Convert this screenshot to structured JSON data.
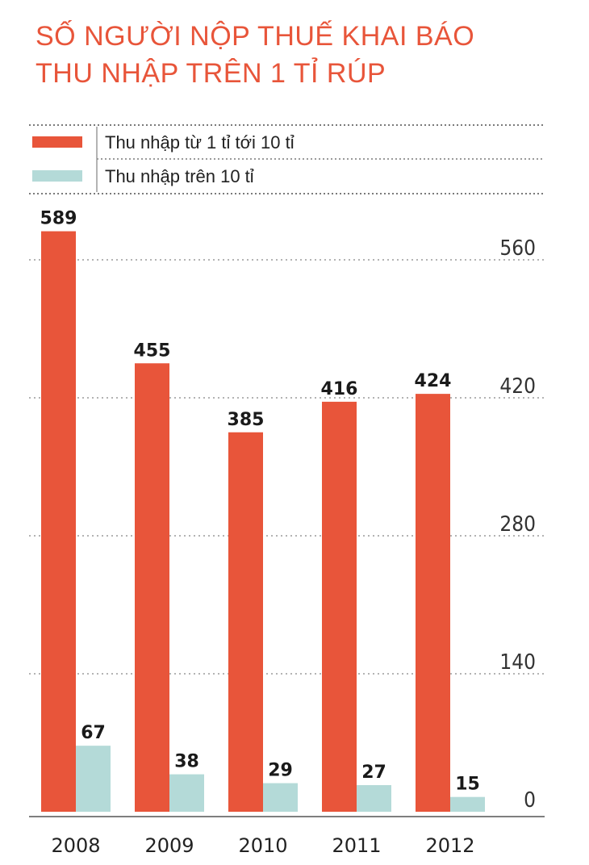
{
  "chart_data": {
    "type": "bar",
    "title_lines": [
      "SỐ NGƯỜI NỘP THUẾ KHAI BÁO",
      "THU NHẬP TRÊN 1 TỈ RÚP"
    ],
    "categories": [
      "2008",
      "2009",
      "2010",
      "2011",
      "2012"
    ],
    "series": [
      {
        "name": "Thu nhập từ 1 tỉ tới 10 tỉ",
        "values": [
          589,
          455,
          385,
          416,
          424
        ],
        "value_labels": [
          "589",
          "455",
          "385",
          "416",
          "424"
        ],
        "color": "#e8553a"
      },
      {
        "name": "Thu nhập trên 10 tỉ",
        "values": [
          67,
          38,
          29,
          27,
          15
        ],
        "value_labels": [
          "67",
          "38",
          "29",
          "27",
          "15"
        ],
        "color": "#b4dad8"
      }
    ],
    "ylim": [
      0,
      560
    ],
    "yticks": [
      0,
      140,
      280,
      420,
      560
    ],
    "ytick_labels": [
      "0",
      "140",
      "280",
      "420",
      "560"
    ],
    "yaxis_position": "right",
    "grid": "dotted horizontal",
    "legend_position": "top"
  }
}
